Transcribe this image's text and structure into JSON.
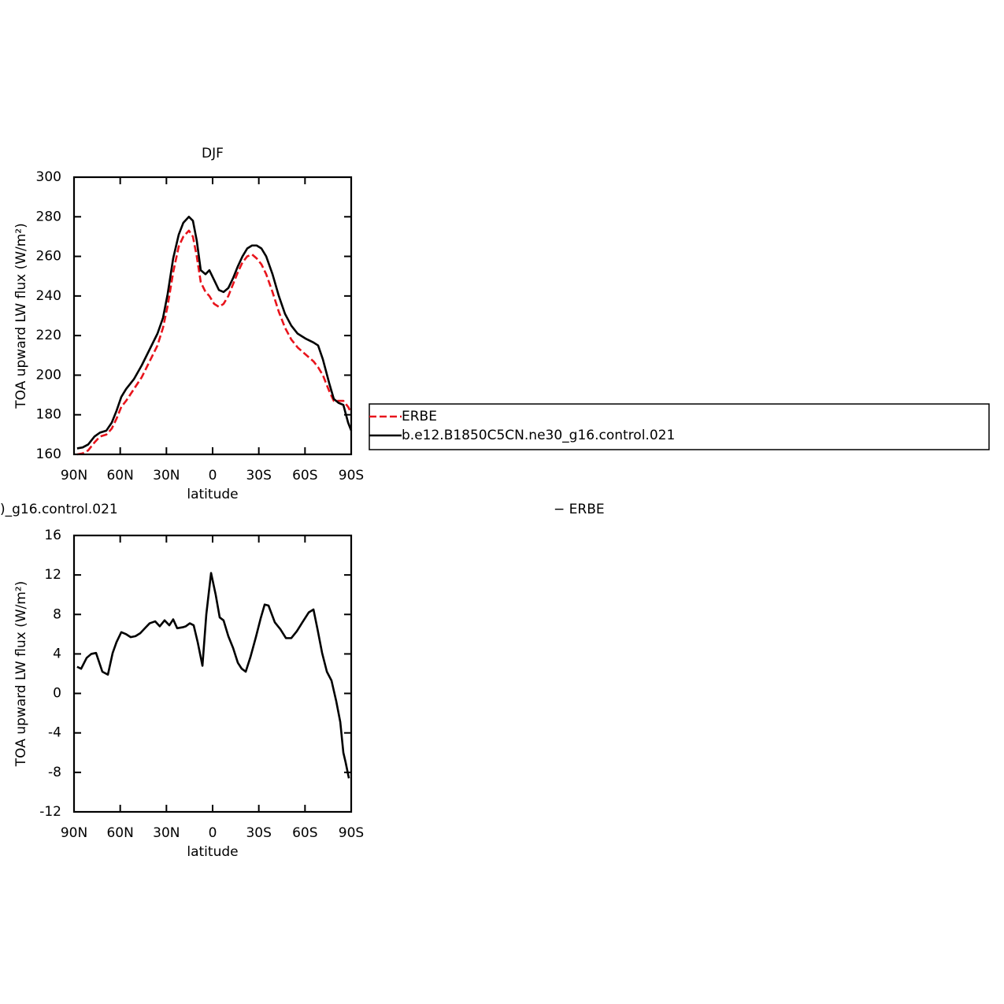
{
  "chart_data": [
    {
      "type": "line",
      "title": "DJF",
      "x_label": "latitude",
      "y_label": "TOA upward LW flux (W/m²)",
      "x": [
        88.0,
        84.4,
        80.8,
        76.7,
        73.1,
        69.0,
        65.5,
        62.4,
        59.3,
        56.2,
        51.1,
        46.0,
        40.9,
        35.8,
        32.2,
        29.2,
        25.6,
        22.0,
        19.0,
        15.4,
        12.8,
        10.3,
        7.7,
        4.6,
        2.1,
        -1.0,
        -4.1,
        -7.1,
        -10.2,
        -13.3,
        -16.4,
        -19.4,
        -22.5,
        -25.6,
        -28.6,
        -31.7,
        -34.8,
        -38.9,
        -43.0,
        -47.0,
        -51.1,
        -55.2,
        -60.3,
        -65.5,
        -68.5,
        -71.6,
        -75.7,
        -78.7,
        -81.8,
        -84.9,
        -88.0,
        -90.0
      ],
      "series": [
        {
          "name": "ERBE",
          "color": "#e8141c",
          "dash": true,
          "values": [
            160,
            160.5,
            162,
            166,
            169,
            170,
            173,
            178,
            184,
            187,
            193,
            199,
            207,
            215,
            224,
            235,
            252,
            265,
            270,
            273,
            270,
            260,
            247,
            242,
            240,
            236,
            234.5,
            236,
            240,
            246,
            252,
            257,
            260,
            261,
            259,
            256,
            251,
            242,
            232,
            224,
            218,
            214,
            210.5,
            207,
            204,
            200,
            192,
            187,
            187,
            187,
            184,
            181
          ]
        },
        {
          "name": "b.e12.B1850C5CN.ne30_g16.control.021",
          "color": "#000000",
          "dash": false,
          "values": [
            163,
            163.5,
            165,
            169,
            171,
            172,
            176,
            182,
            189,
            193,
            198,
            205,
            213,
            221,
            229,
            241,
            259,
            271,
            277,
            280,
            278,
            268,
            253,
            251,
            253,
            248,
            243,
            242,
            244,
            249,
            255,
            260,
            264,
            265.5,
            265.5,
            264,
            260,
            251,
            240,
            231,
            225,
            221,
            218.5,
            216.5,
            215,
            208,
            196,
            188,
            186,
            185,
            176,
            172
          ]
        }
      ],
      "xlim": [
        90,
        -90
      ],
      "xticks": [
        {
          "value": 90,
          "label": "90N"
        },
        {
          "value": 60,
          "label": "60N"
        },
        {
          "value": 30,
          "label": "30N"
        },
        0,
        {
          "value": -30,
          "label": "30S"
        },
        {
          "value": -60,
          "label": "60S"
        },
        {
          "value": -90,
          "label": "90S"
        }
      ],
      "ylim": [
        160,
        300
      ],
      "yticks": [
        160,
        180,
        200,
        220,
        240,
        260,
        280,
        300
      ],
      "legend": "right"
    },
    {
      "type": "line",
      "title": [
        ")_g16.control.021",
        "− ERBE"
      ],
      "x_label": "latitude",
      "y_label": "TOA upward LW flux (W/m²)",
      "x": [
        88.0,
        85.4,
        81.8,
        78.8,
        75.7,
        71.6,
        68.0,
        64.9,
        62.4,
        59.3,
        56.2,
        53.2,
        50.1,
        47.0,
        44.0,
        40.9,
        37.3,
        34.3,
        31.2,
        28.1,
        25.6,
        23.0,
        19.4,
        17.4,
        14.8,
        12.3,
        9.7,
        6.6,
        4.1,
        1.0,
        -2.0,
        -4.6,
        -7.1,
        -10.2,
        -13.3,
        -16.4,
        -18.9,
        -21.5,
        -24.6,
        -28.1,
        -31.2,
        -33.8,
        -36.3,
        -40.4,
        -44.0,
        -47.6,
        -51.1,
        -54.7,
        -58.3,
        -62.4,
        -65.5,
        -68.0,
        -71.1,
        -74.2,
        -77.2,
        -80.3,
        -82.9,
        -84.9,
        -86.4,
        -88.5
      ],
      "series": [
        {
          "color": "#000000",
          "dash": false,
          "values": [
            2.7,
            2.5,
            3.6,
            4.0,
            4.1,
            2.2,
            1.9,
            4.1,
            5.2,
            6.2,
            6.0,
            5.7,
            5.8,
            6.1,
            6.6,
            7.1,
            7.3,
            6.8,
            7.4,
            6.9,
            7.5,
            6.6,
            6.7,
            6.8,
            7.1,
            6.9,
            5.2,
            2.8,
            8.0,
            12.2,
            10.0,
            7.7,
            7.4,
            5.8,
            4.6,
            3.1,
            2.5,
            2.2,
            3.7,
            5.7,
            7.6,
            9.0,
            8.9,
            7.2,
            6.5,
            5.6,
            5.6,
            6.3,
            7.2,
            8.2,
            8.5,
            6.6,
            4.1,
            2.2,
            1.3,
            -0.8,
            -2.9,
            -6.0,
            -7.0,
            -8.6
          ]
        }
      ],
      "xlim": [
        90,
        -90
      ],
      "xticks": [
        {
          "value": 90,
          "label": "90N"
        },
        {
          "value": 60,
          "label": "60N"
        },
        {
          "value": 30,
          "label": "30N"
        },
        0,
        {
          "value": -30,
          "label": "30S"
        },
        {
          "value": -60,
          "label": "60S"
        },
        {
          "value": -90,
          "label": "90S"
        }
      ],
      "ylim": [
        -12,
        16
      ],
      "yticks": [
        -12,
        -8,
        -4,
        0,
        4,
        8,
        12,
        16
      ]
    }
  ]
}
